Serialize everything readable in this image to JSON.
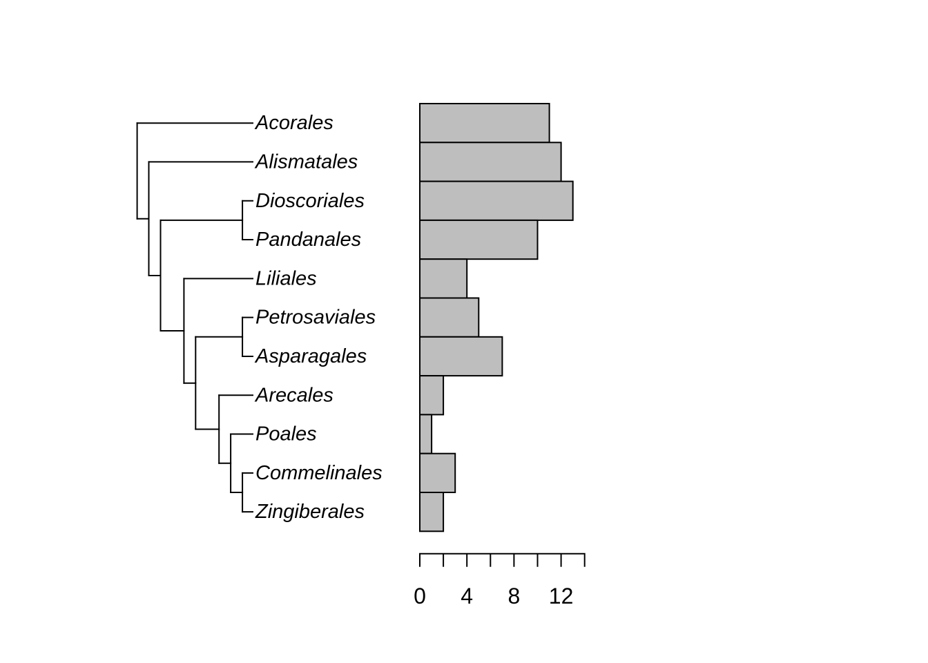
{
  "figure": {
    "background_color": "#ffffff",
    "line_color": "#000000"
  },
  "tree": {
    "style": "cladogram",
    "tip_label_font_style": "italic",
    "topology": {
      "children": [
        {
          "name": "Acorales"
        },
        {
          "children": [
            {
              "name": "Alismatales"
            },
            {
              "children": [
                {
                  "children": [
                    {
                      "name": "Dioscoriales"
                    },
                    {
                      "name": "Pandanales"
                    }
                  ]
                },
                {
                  "children": [
                    {
                      "name": "Liliales"
                    },
                    {
                      "children": [
                        {
                          "children": [
                            {
                              "name": "Petrosaviales"
                            },
                            {
                              "name": "Asparagales"
                            }
                          ]
                        },
                        {
                          "children": [
                            {
                              "name": "Arecales"
                            },
                            {
                              "children": [
                                {
                                  "name": "Poales"
                                },
                                {
                                  "children": [
                                    {
                                      "name": "Commelinales"
                                    },
                                    {
                                      "name": "Zingiberales"
                                    }
                                  ]
                                }
                              ]
                            }
                          ]
                        }
                      ]
                    }
                  ]
                }
              ]
            }
          ]
        }
      ]
    }
  },
  "chart_data": {
    "type": "bar",
    "orientation": "horizontal",
    "title": "",
    "xlabel": "",
    "ylabel": "",
    "categories": [
      "Acorales",
      "Alismatales",
      "Dioscoriales",
      "Pandanales",
      "Liliales",
      "Petrosaviales",
      "Asparagales",
      "Arecales",
      "Poales",
      "Commelinales",
      "Zingiberales"
    ],
    "values": [
      11,
      12,
      13,
      10,
      4,
      5,
      7,
      2,
      1,
      3,
      2
    ],
    "xlim": [
      0,
      14
    ],
    "axis_ticks": [
      0,
      2,
      4,
      6,
      8,
      10,
      12,
      14
    ],
    "labeled_ticks": [
      0,
      4,
      8,
      12
    ],
    "axis_tick_label_strings": [
      "0",
      "4",
      "8",
      "12"
    ],
    "bar_fill": "#BEBEBE",
    "bar_stroke": "#000000",
    "grid": false,
    "legend": false
  }
}
